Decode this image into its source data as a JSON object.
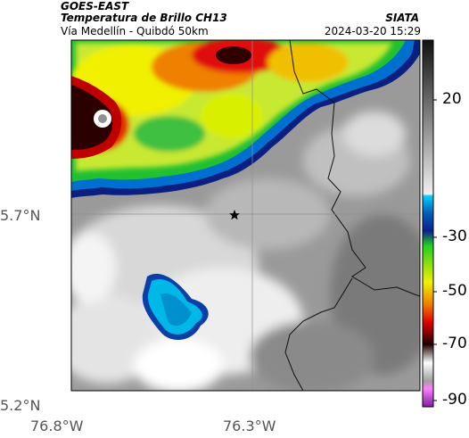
{
  "header": {
    "satellite": "GOES-EAST",
    "product": "Temperatura de Brillo CH13",
    "subtitle": "Vía Medellín - Quibdó 50km",
    "org": "SIATA",
    "timestamp": "2024-03-20 15:29"
  },
  "map": {
    "lat_ticks": [
      "5.7°N",
      "5.2°N"
    ],
    "lon_ticks": [
      "76.8°W",
      "76.3°W"
    ],
    "marker": "star-marker"
  },
  "colorbar": {
    "ticks": [
      "20",
      "-30",
      "-50",
      "-70",
      "-90"
    ],
    "colors": {
      "gray_light": "#e6e6e6",
      "gray_dark": "#3c3c3c",
      "cyan": "#00b0e0",
      "blue": "#0a2fa0",
      "green": "#20c020",
      "yellow": "#f0f000",
      "orange": "#f08000",
      "red": "#d00000",
      "black": "#100000",
      "magenta": "#c040c0"
    }
  }
}
